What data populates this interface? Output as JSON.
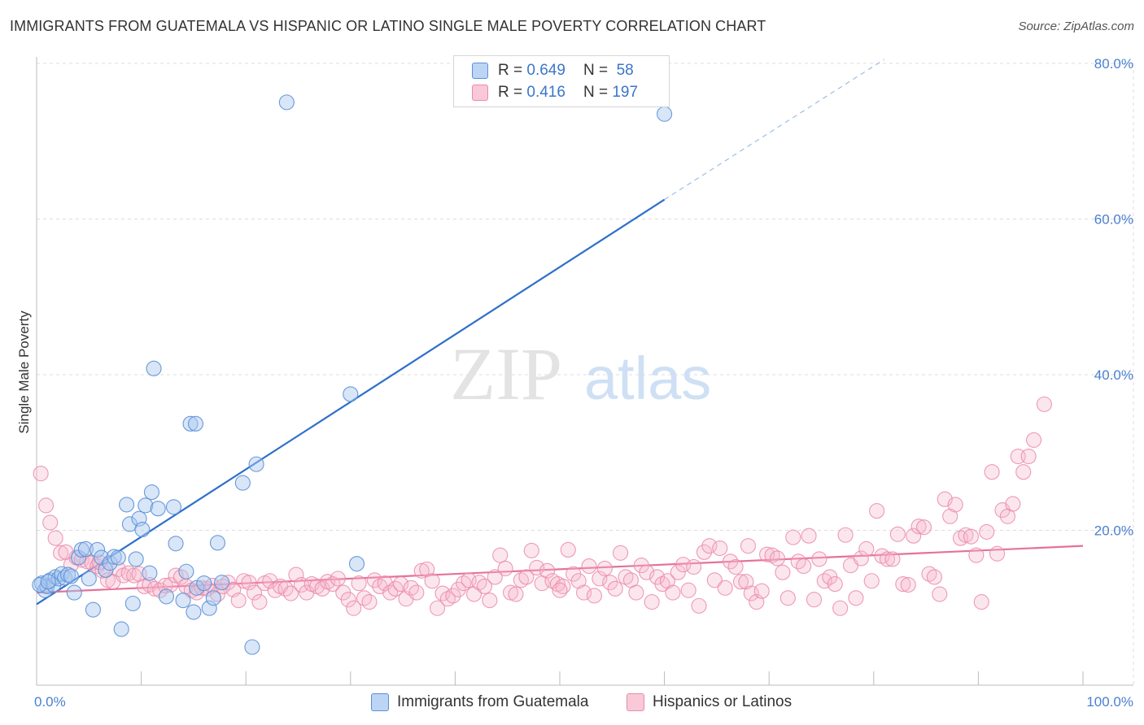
{
  "title": "IMMIGRANTS FROM GUATEMALA VS HISPANIC OR LATINO SINGLE MALE POVERTY CORRELATION CHART",
  "source": "Source: ZipAtlas.com",
  "watermark": {
    "zip": "ZIP",
    "atlas": "atlas"
  },
  "legend": {
    "r_label": "R =",
    "n_label": "N =",
    "series1": {
      "r": "0.649",
      "n": "58"
    },
    "series2": {
      "r": "0.416",
      "n": "197"
    }
  },
  "colors": {
    "blue_fill": "#a9c8f0",
    "blue_stroke": "#5b8fd6",
    "blue_line": "#2d6fcb",
    "pink_fill": "#f6b8cc",
    "pink_stroke": "#ea8aa9",
    "pink_line": "#e5719a",
    "tick": "#4a7fd0",
    "grid": "#dddddd"
  },
  "chart_data": {
    "type": "scatter",
    "title": "IMMIGRANTS FROM GUATEMALA VS HISPANIC OR LATINO SINGLE MALE POVERTY CORRELATION CHART",
    "xlabel": "",
    "ylabel": "Single Male Poverty",
    "xlim": [
      0,
      100
    ],
    "ylim": [
      0,
      80
    ],
    "x_tick_labels": [
      "0.0%",
      "100.0%"
    ],
    "y_ticks": [
      20,
      40,
      60,
      80
    ],
    "y_tick_labels": [
      "20.0%",
      "40.0%",
      "60.0%",
      "80.0%"
    ],
    "series": [
      {
        "name": "Immigrants from Guatemala",
        "r": 0.649,
        "n": 58,
        "trend": {
          "x0": 0,
          "y0": 10.5,
          "x1": 60,
          "y1": 62.5,
          "dash_to_x": 81,
          "dash_to_y": 80.5
        },
        "points": [
          [
            0.5,
            13.2
          ],
          [
            0.8,
            12.3
          ],
          [
            1.0,
            12.8
          ],
          [
            1.3,
            13.6
          ],
          [
            1.6,
            13.0
          ],
          [
            1.8,
            14.0
          ],
          [
            2.1,
            13.8
          ],
          [
            2.4,
            14.4
          ],
          [
            2.7,
            13.9
          ],
          [
            3.0,
            14.3
          ],
          [
            3.3,
            14.1
          ],
          [
            3.6,
            12.0
          ],
          [
            4.0,
            16.5
          ],
          [
            4.3,
            17.5
          ],
          [
            4.7,
            17.6
          ],
          [
            5.0,
            13.8
          ],
          [
            5.4,
            9.8
          ],
          [
            5.8,
            17.5
          ],
          [
            6.2,
            16.5
          ],
          [
            6.6,
            14.9
          ],
          [
            7.0,
            15.8
          ],
          [
            7.4,
            16.6
          ],
          [
            7.8,
            16.5
          ],
          [
            8.1,
            7.3
          ],
          [
            8.6,
            23.3
          ],
          [
            8.9,
            20.8
          ],
          [
            9.2,
            10.6
          ],
          [
            9.5,
            16.3
          ],
          [
            9.8,
            21.5
          ],
          [
            10.1,
            20.1
          ],
          [
            10.4,
            23.2
          ],
          [
            10.8,
            14.5
          ],
          [
            11.0,
            24.9
          ],
          [
            11.2,
            40.8
          ],
          [
            11.6,
            22.8
          ],
          [
            12.4,
            11.5
          ],
          [
            13.1,
            23.0
          ],
          [
            13.3,
            18.3
          ],
          [
            14.0,
            11.0
          ],
          [
            14.3,
            14.7
          ],
          [
            14.7,
            33.7
          ],
          [
            15.0,
            9.5
          ],
          [
            15.2,
            33.7
          ],
          [
            15.3,
            12.6
          ],
          [
            16.0,
            13.2
          ],
          [
            16.5,
            10.0
          ],
          [
            16.9,
            11.3
          ],
          [
            17.3,
            18.4
          ],
          [
            17.7,
            13.3
          ],
          [
            19.7,
            26.1
          ],
          [
            20.6,
            5.0
          ],
          [
            21.0,
            28.5
          ],
          [
            23.9,
            75.0
          ],
          [
            30.0,
            37.5
          ],
          [
            30.6,
            15.7
          ],
          [
            60.0,
            73.5
          ],
          [
            0.3,
            13.0
          ],
          [
            1.1,
            13.4
          ]
        ]
      },
      {
        "name": "Hispanics or Latinos",
        "r": 0.416,
        "n": 197,
        "trend": {
          "x0": 0,
          "y0": 12.0,
          "x1": 100,
          "y1": 18.0
        },
        "points": [
          [
            0.4,
            27.3
          ],
          [
            0.9,
            23.2
          ],
          [
            1.3,
            21.0
          ],
          [
            1.8,
            19.0
          ],
          [
            2.3,
            17.1
          ],
          [
            2.8,
            17.2
          ],
          [
            3.3,
            15.6
          ],
          [
            3.8,
            16.5
          ],
          [
            4.3,
            16.2
          ],
          [
            4.8,
            16.0
          ],
          [
            5.3,
            15.8
          ],
          [
            5.8,
            15.4
          ],
          [
            6.3,
            14.8
          ],
          [
            6.8,
            13.6
          ],
          [
            7.3,
            13.4
          ],
          [
            7.8,
            15.0
          ],
          [
            8.3,
            14.2
          ],
          [
            8.8,
            14.5
          ],
          [
            9.3,
            14.2
          ],
          [
            9.8,
            14.4
          ],
          [
            10.3,
            12.8
          ],
          [
            10.8,
            13.0
          ],
          [
            11.3,
            12.5
          ],
          [
            11.8,
            12.3
          ],
          [
            12.3,
            12.9
          ],
          [
            12.8,
            13.0
          ],
          [
            13.3,
            14.2
          ],
          [
            13.8,
            14.0
          ],
          [
            14.3,
            12.8
          ],
          [
            14.8,
            12.3
          ],
          [
            15.3,
            12.0
          ],
          [
            15.8,
            12.6
          ],
          [
            16.3,
            12.5
          ],
          [
            16.8,
            12.9
          ],
          [
            17.3,
            11.8
          ],
          [
            17.8,
            12.8
          ],
          [
            18.3,
            13.3
          ],
          [
            18.8,
            12.4
          ],
          [
            19.3,
            11.0
          ],
          [
            19.8,
            13.5
          ],
          [
            20.3,
            13.3
          ],
          [
            20.8,
            12.0
          ],
          [
            21.3,
            10.8
          ],
          [
            21.8,
            13.2
          ],
          [
            22.3,
            13.5
          ],
          [
            22.8,
            12.3
          ],
          [
            23.3,
            12.8
          ],
          [
            23.8,
            12.5
          ],
          [
            24.3,
            11.9
          ],
          [
            24.8,
            14.3
          ],
          [
            25.3,
            13.0
          ],
          [
            25.8,
            12.0
          ],
          [
            26.3,
            13.1
          ],
          [
            26.8,
            12.8
          ],
          [
            27.3,
            12.5
          ],
          [
            27.8,
            13.4
          ],
          [
            28.3,
            13.1
          ],
          [
            28.8,
            13.8
          ],
          [
            29.3,
            12.0
          ],
          [
            29.8,
            11.1
          ],
          [
            30.3,
            10.0
          ],
          [
            30.8,
            13.2
          ],
          [
            31.3,
            11.3
          ],
          [
            31.8,
            10.8
          ],
          [
            32.3,
            13.6
          ],
          [
            32.8,
            12.8
          ],
          [
            33.3,
            13.2
          ],
          [
            33.8,
            12.0
          ],
          [
            34.3,
            12.5
          ],
          [
            34.8,
            13.1
          ],
          [
            35.3,
            11.2
          ],
          [
            35.8,
            12.6
          ],
          [
            36.3,
            12.0
          ],
          [
            36.8,
            14.8
          ],
          [
            37.3,
            15.0
          ],
          [
            37.8,
            13.5
          ],
          [
            38.3,
            10.0
          ],
          [
            38.8,
            11.9
          ],
          [
            39.3,
            11.2
          ],
          [
            39.8,
            11.6
          ],
          [
            40.3,
            12.4
          ],
          [
            40.8,
            13.2
          ],
          [
            41.3,
            13.6
          ],
          [
            41.8,
            11.8
          ],
          [
            42.3,
            13.3
          ],
          [
            42.8,
            12.8
          ],
          [
            43.3,
            11.0
          ],
          [
            43.8,
            14.0
          ],
          [
            44.3,
            16.8
          ],
          [
            44.8,
            15.1
          ],
          [
            45.3,
            12.0
          ],
          [
            45.8,
            11.8
          ],
          [
            46.3,
            13.6
          ],
          [
            46.8,
            14.0
          ],
          [
            47.3,
            17.4
          ],
          [
            47.8,
            15.2
          ],
          [
            48.3,
            13.2
          ],
          [
            48.8,
            14.8
          ],
          [
            49.3,
            13.5
          ],
          [
            49.8,
            13.1
          ],
          [
            50.3,
            12.8
          ],
          [
            50.8,
            17.5
          ],
          [
            51.3,
            14.4
          ],
          [
            51.8,
            13.5
          ],
          [
            52.3,
            12.0
          ],
          [
            52.8,
            15.4
          ],
          [
            53.3,
            11.6
          ],
          [
            53.8,
            13.8
          ],
          [
            54.3,
            15.1
          ],
          [
            54.8,
            13.3
          ],
          [
            55.3,
            12.5
          ],
          [
            55.8,
            17.1
          ],
          [
            56.3,
            14.0
          ],
          [
            56.8,
            13.6
          ],
          [
            57.3,
            12.0
          ],
          [
            57.8,
            15.5
          ],
          [
            58.3,
            14.6
          ],
          [
            58.8,
            10.8
          ],
          [
            59.3,
            14.0
          ],
          [
            59.8,
            13.1
          ],
          [
            60.3,
            13.5
          ],
          [
            60.8,
            12.0
          ],
          [
            61.3,
            14.6
          ],
          [
            61.8,
            15.6
          ],
          [
            62.3,
            12.3
          ],
          [
            62.8,
            15.3
          ],
          [
            63.3,
            10.3
          ],
          [
            63.8,
            17.2
          ],
          [
            64.3,
            18.0
          ],
          [
            64.8,
            13.6
          ],
          [
            65.3,
            17.7
          ],
          [
            65.8,
            12.6
          ],
          [
            66.3,
            16.0
          ],
          [
            66.8,
            15.3
          ],
          [
            67.3,
            13.4
          ],
          [
            67.8,
            13.4
          ],
          [
            68.3,
            11.9
          ],
          [
            68.8,
            10.8
          ],
          [
            69.3,
            12.2
          ],
          [
            69.8,
            16.9
          ],
          [
            70.3,
            16.8
          ],
          [
            70.8,
            16.4
          ],
          [
            71.3,
            14.6
          ],
          [
            71.8,
            11.3
          ],
          [
            72.3,
            19.1
          ],
          [
            72.8,
            16.0
          ],
          [
            73.3,
            15.4
          ],
          [
            73.8,
            19.3
          ],
          [
            74.3,
            11.1
          ],
          [
            74.8,
            16.3
          ],
          [
            75.3,
            13.5
          ],
          [
            75.8,
            14.0
          ],
          [
            76.3,
            13.1
          ],
          [
            76.8,
            10.0
          ],
          [
            77.3,
            19.4
          ],
          [
            77.8,
            15.5
          ],
          [
            78.3,
            11.3
          ],
          [
            78.8,
            16.4
          ],
          [
            79.3,
            17.6
          ],
          [
            79.8,
            13.5
          ],
          [
            80.3,
            22.5
          ],
          [
            80.8,
            16.7
          ],
          [
            81.3,
            16.3
          ],
          [
            81.8,
            16.3
          ],
          [
            82.3,
            19.5
          ],
          [
            82.8,
            13.1
          ],
          [
            83.3,
            13.0
          ],
          [
            83.8,
            19.3
          ],
          [
            84.3,
            20.5
          ],
          [
            84.8,
            20.4
          ],
          [
            85.3,
            14.4
          ],
          [
            85.8,
            14.0
          ],
          [
            86.3,
            11.8
          ],
          [
            86.8,
            24.0
          ],
          [
            87.3,
            21.8
          ],
          [
            87.8,
            23.3
          ],
          [
            88.3,
            19.0
          ],
          [
            88.8,
            19.4
          ],
          [
            89.3,
            19.2
          ],
          [
            89.8,
            16.8
          ],
          [
            90.3,
            10.8
          ],
          [
            90.8,
            19.8
          ],
          [
            91.3,
            27.5
          ],
          [
            91.8,
            17.0
          ],
          [
            92.3,
            22.6
          ],
          [
            92.8,
            21.8
          ],
          [
            93.3,
            23.4
          ],
          [
            93.8,
            29.5
          ],
          [
            94.3,
            27.5
          ],
          [
            94.8,
            29.5
          ],
          [
            95.3,
            31.6
          ],
          [
            96.3,
            36.2
          ],
          [
            6.0,
            15.9
          ],
          [
            50.0,
            12.3
          ],
          [
            68.0,
            18.0
          ]
        ]
      }
    ],
    "legend_entries": [
      "Immigrants from Guatemala",
      "Hispanics or Latinos"
    ]
  }
}
